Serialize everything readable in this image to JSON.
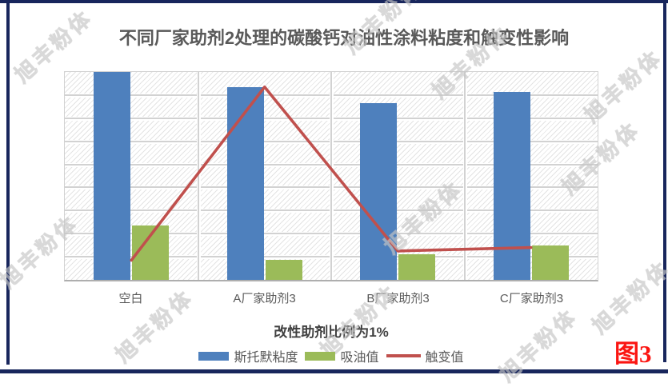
{
  "page": {
    "figure_label": "图3",
    "watermark_text": "旭丰粉体"
  },
  "colors": {
    "frame_border": "#18265c",
    "bar_blue": "#4e80bd",
    "bar_green": "#9bbb59",
    "line_red": "#c0504d",
    "figure_label_red": "#fb1511",
    "text_gray": "#595959",
    "gridline": "#d2d2d2"
  },
  "chart_data": {
    "type": "bar",
    "subtype": "combo-bar-line",
    "title": "不同厂家助剂2处理的碳酸钙对油性涂料粘度和触变性影响",
    "categories": [
      "空白",
      "A厂家助剂3",
      "B厂家助剂3",
      "C厂家助剂3"
    ],
    "series": [
      {
        "name": "斯托默粘度",
        "type": "bar",
        "color": "#4e80bd",
        "values": [
          9.0,
          8.35,
          7.65,
          8.15
        ]
      },
      {
        "name": "吸油值",
        "type": "bar",
        "color": "#9bbb59",
        "values": [
          2.35,
          0.85,
          1.1,
          1.5
        ]
      },
      {
        "name": "触变值",
        "type": "line",
        "color": "#c0504d",
        "values": [
          0.85,
          8.35,
          1.25,
          1.4
        ]
      }
    ],
    "xlabel": "改性助剂比例为1%",
    "ylabel": "",
    "ylim": [
      0,
      9
    ],
    "y_axis_tick_labels_visible": false,
    "value_note": "y-axis has no tick labels; values estimated in horizontal-gridline units (9 intervals, plot bottom = 0, top = 9)",
    "grid": {
      "horizontal_intervals": 9,
      "vertical_category_dividers": true,
      "plot_background": "diagonal-hatch"
    },
    "legend_position": "bottom"
  }
}
